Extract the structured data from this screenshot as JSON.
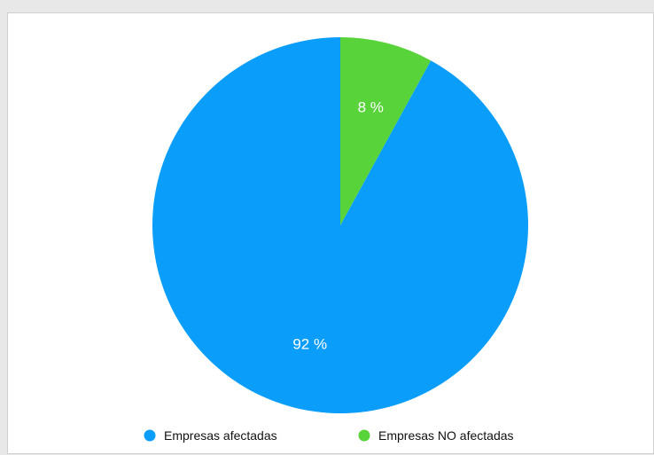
{
  "chart_data": {
    "type": "pie",
    "title": "",
    "slices": [
      {
        "name": "Empresas afectadas",
        "value": 92,
        "label": "92 %",
        "color": "#0a9dfa"
      },
      {
        "name": "Empresas NO afectadas",
        "value": 8,
        "label": "8 %",
        "color": "#58d33a"
      }
    ],
    "legend_position": "bottom",
    "grid": false
  }
}
